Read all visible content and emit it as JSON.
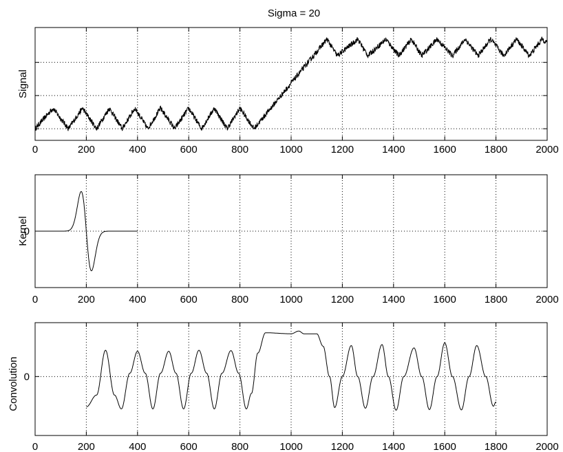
{
  "title": "Sigma = 20",
  "chart_data": [
    {
      "type": "line",
      "ylabel": "Signal",
      "xlim": [
        0,
        2000
      ],
      "xticks": [
        "0",
        "200",
        "400",
        "600",
        "800",
        "1000",
        "1200",
        "1400",
        "1600",
        "1800",
        "2000"
      ],
      "yticks": [],
      "grid": true,
      "series": [
        {
          "x": [
            0,
            70,
            130,
            185,
            240,
            290,
            340,
            390,
            440,
            490,
            545,
            600,
            650,
            700,
            750,
            800,
            855,
            1140,
            1180,
            1260,
            1300,
            1370,
            1420,
            1470,
            1510,
            1570,
            1630,
            1680,
            1730,
            1780,
            1830,
            1880,
            1930,
            1980,
            2000
          ],
          "values": [
            0.0,
            0.62,
            0.0,
            0.62,
            0.0,
            0.62,
            0.0,
            0.62,
            0.0,
            0.62,
            0.0,
            0.62,
            0.0,
            0.62,
            0.0,
            0.62,
            0.0,
            2.7,
            2.2,
            2.7,
            2.2,
            2.7,
            2.2,
            2.7,
            2.2,
            2.7,
            2.2,
            2.7,
            2.2,
            2.7,
            2.2,
            2.7,
            2.2,
            2.7,
            2.6
          ],
          "noise": 0.08
        }
      ]
    },
    {
      "type": "line",
      "ylabel": "Kernel",
      "xlim": [
        0,
        2000
      ],
      "xticks": [
        "0",
        "200",
        "400",
        "600",
        "800",
        "1000",
        "1200",
        "1400",
        "1600",
        "1800",
        "2000"
      ],
      "yticks": [
        "0"
      ],
      "grid": true,
      "series": [
        {
          "kind": "derivative-of-gaussian",
          "center": 200,
          "sigma": 20,
          "x_range": [
            0,
            400
          ]
        }
      ]
    },
    {
      "type": "line",
      "ylabel": "Convolution",
      "xlim": [
        0,
        2000
      ],
      "xticks": [
        "0",
        "200",
        "400",
        "600",
        "800",
        "1000",
        "1200",
        "1400",
        "1600",
        "1800",
        "2000"
      ],
      "yticks": [
        "0"
      ],
      "grid": true,
      "series": [
        {
          "x": [
            200,
            240,
            275,
            310,
            337,
            370,
            400,
            430,
            460,
            490,
            522,
            550,
            580,
            610,
            640,
            670,
            700,
            730,
            765,
            795,
            825,
            845,
            870,
            900,
            1000,
            1030,
            1050,
            1100,
            1125,
            1150,
            1170,
            1200,
            1235,
            1260,
            1290,
            1320,
            1355,
            1380,
            1410,
            1440,
            1480,
            1510,
            1540,
            1570,
            1600,
            1630,
            1665,
            1695,
            1725,
            1760,
            1790,
            1800
          ],
          "values": [
            -0.9,
            -0.55,
            0.78,
            -0.55,
            -0.96,
            0.1,
            0.75,
            0.1,
            -0.96,
            0.1,
            0.75,
            0.1,
            -0.96,
            0.1,
            0.78,
            0.1,
            -0.96,
            0.1,
            0.77,
            0.1,
            -0.96,
            -0.5,
            0.7,
            1.3,
            1.27,
            1.35,
            1.27,
            1.27,
            0.9,
            0.0,
            -0.92,
            0.0,
            0.92,
            0.0,
            -0.94,
            0.0,
            0.95,
            0.0,
            -1.0,
            0.0,
            0.85,
            0.0,
            -0.98,
            0.0,
            1.0,
            0.0,
            -0.99,
            0.0,
            0.92,
            0.0,
            -0.88,
            -0.75
          ]
        }
      ]
    }
  ]
}
